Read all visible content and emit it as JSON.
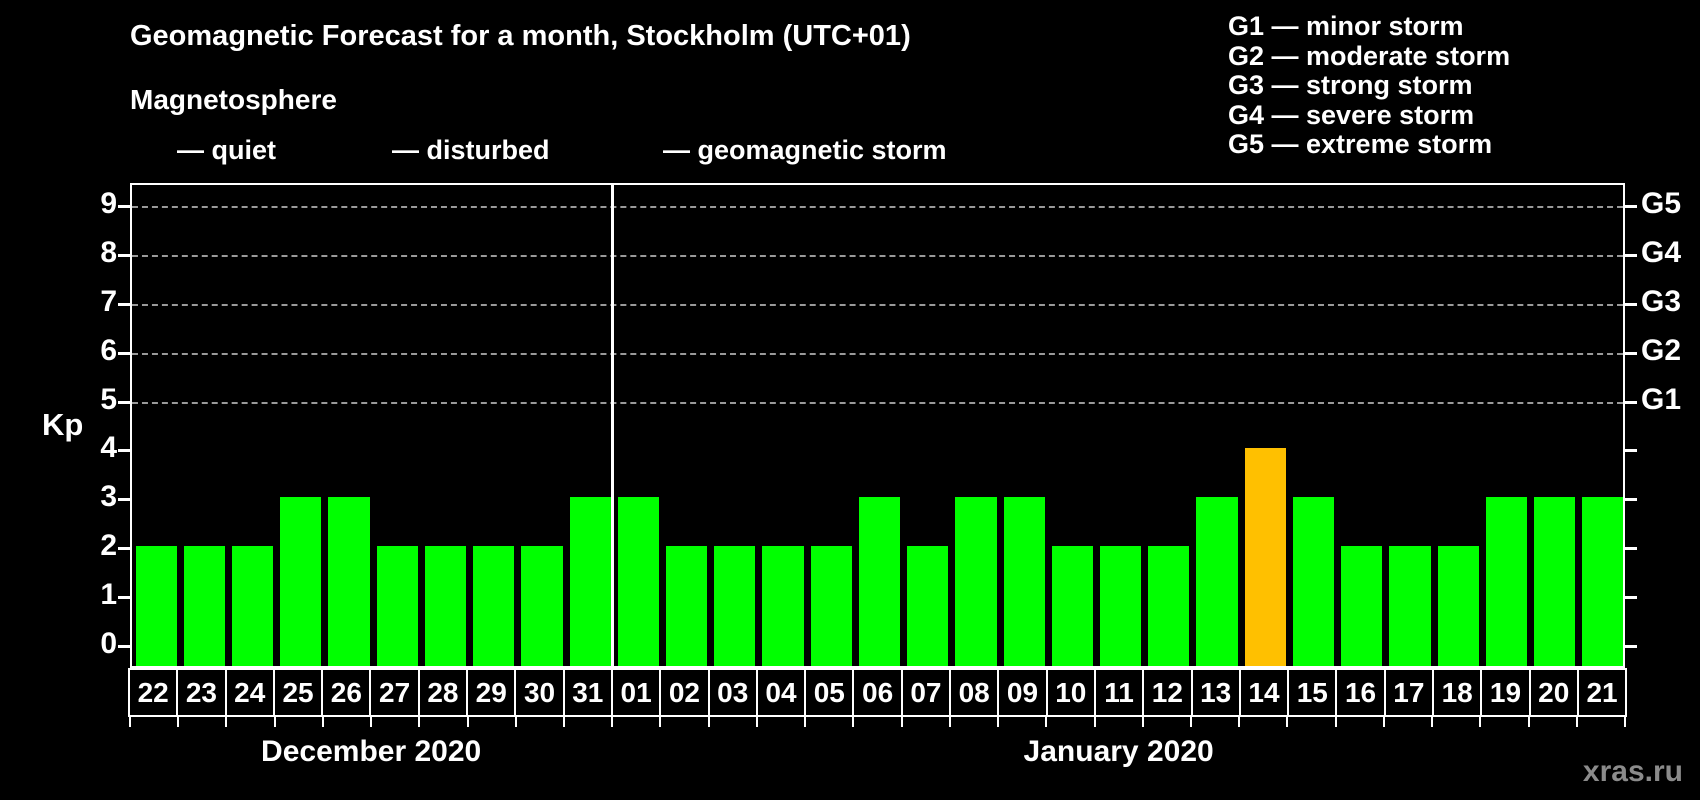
{
  "title": "Geomagnetic Forecast for a month, Stockholm (UTC+01)",
  "subtitle": "Magnetosphere",
  "legend": {
    "quiet_label": "— quiet",
    "disturbed_label": "— disturbed",
    "storm_label": "— geomagnetic storm"
  },
  "g_scale_legend": [
    "G1 — minor storm",
    "G2 — moderate storm",
    "G3 — strong storm",
    "G4 — severe storm",
    "G5 — extreme storm"
  ],
  "watermark": "xras.ru",
  "colors": {
    "quiet": "#00ff00",
    "disturbed": "#ffc000",
    "storm": "#ff0000",
    "gridline": "#9a9a9a",
    "axis": "#ffffff",
    "background": "#000000"
  },
  "chart_data": {
    "type": "bar",
    "title": "Geomagnetic Forecast for a month, Stockholm (UTC+01)",
    "ylabel": "Kp",
    "ylim": [
      0,
      9.6
    ],
    "y_ticks": [
      0,
      1,
      2,
      3,
      4,
      5,
      6,
      7,
      8,
      9
    ],
    "gridline_levels": [
      5,
      6,
      7,
      8,
      9
    ],
    "grid": "dashed, levels 5-9 only",
    "legend_position": "top",
    "right_axis_labels": [
      {
        "level": 9,
        "label": "G5"
      },
      {
        "level": 8,
        "label": "G4"
      },
      {
        "level": 7,
        "label": "G3"
      },
      {
        "level": 6,
        "label": "G2"
      },
      {
        "level": 5,
        "label": "G1"
      }
    ],
    "months": [
      {
        "label": "December 2020",
        "days": [
          {
            "day": "22",
            "kp": 2,
            "status": "quiet"
          },
          {
            "day": "23",
            "kp": 2,
            "status": "quiet"
          },
          {
            "day": "24",
            "kp": 2,
            "status": "quiet"
          },
          {
            "day": "25",
            "kp": 3,
            "status": "quiet"
          },
          {
            "day": "26",
            "kp": 3,
            "status": "quiet"
          },
          {
            "day": "27",
            "kp": 2,
            "status": "quiet"
          },
          {
            "day": "28",
            "kp": 2,
            "status": "quiet"
          },
          {
            "day": "29",
            "kp": 2,
            "status": "quiet"
          },
          {
            "day": "30",
            "kp": 2,
            "status": "quiet"
          },
          {
            "day": "31",
            "kp": 3,
            "status": "quiet"
          }
        ]
      },
      {
        "label": "January 2020",
        "days": [
          {
            "day": "01",
            "kp": 3,
            "status": "quiet"
          },
          {
            "day": "02",
            "kp": 2,
            "status": "quiet"
          },
          {
            "day": "03",
            "kp": 2,
            "status": "quiet"
          },
          {
            "day": "04",
            "kp": 2,
            "status": "quiet"
          },
          {
            "day": "05",
            "kp": 2,
            "status": "quiet"
          },
          {
            "day": "06",
            "kp": 3,
            "status": "quiet"
          },
          {
            "day": "07",
            "kp": 2,
            "status": "quiet"
          },
          {
            "day": "08",
            "kp": 3,
            "status": "quiet"
          },
          {
            "day": "09",
            "kp": 3,
            "status": "quiet"
          },
          {
            "day": "10",
            "kp": 2,
            "status": "quiet"
          },
          {
            "day": "11",
            "kp": 2,
            "status": "quiet"
          },
          {
            "day": "12",
            "kp": 2,
            "status": "quiet"
          },
          {
            "day": "13",
            "kp": 3,
            "status": "quiet"
          },
          {
            "day": "14",
            "kp": 4,
            "status": "disturbed"
          },
          {
            "day": "15",
            "kp": 3,
            "status": "quiet"
          },
          {
            "day": "16",
            "kp": 2,
            "status": "quiet"
          },
          {
            "day": "17",
            "kp": 2,
            "status": "quiet"
          },
          {
            "day": "18",
            "kp": 2,
            "status": "quiet"
          },
          {
            "day": "19",
            "kp": 3,
            "status": "quiet"
          },
          {
            "day": "20",
            "kp": 3,
            "status": "quiet"
          },
          {
            "day": "21",
            "kp": 3,
            "status": "quiet"
          }
        ]
      }
    ]
  }
}
